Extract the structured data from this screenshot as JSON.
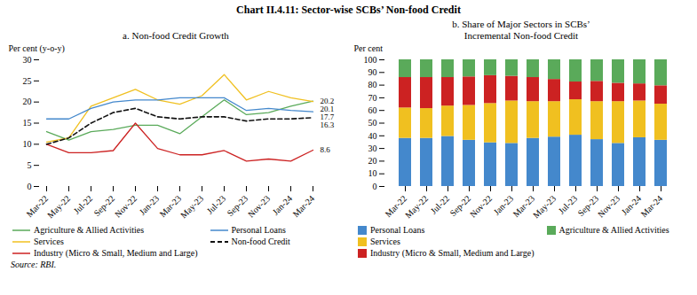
{
  "title": "Chart II.4.11: Sector-wise SCBs’ Non-food Credit",
  "caption": "Source: RBI.",
  "chart_data": [
    {
      "type": "line",
      "title": "a. Non-food Credit Growth",
      "y_label": "Per cent (y-o-y)",
      "categories": [
        "Mar-22",
        "May-22",
        "Jul-22",
        "Sep-22",
        "Nov-22",
        "Jan-23",
        "Mar-23",
        "May-23",
        "Jul-23",
        "Sep-23",
        "Nov-23",
        "Jan-24",
        "Mar-24"
      ],
      "series": [
        {
          "name": "Agriculture & Allied Activities",
          "color": "#5aaa5a",
          "line_style": "solid",
          "values": [
            13.0,
            11.0,
            13.0,
            13.5,
            14.5,
            14.5,
            12.5,
            16.5,
            20.5,
            17.0,
            17.5,
            19.0,
            20.2
          ]
        },
        {
          "name": "Services",
          "color": "#f0c020",
          "line_style": "solid",
          "values": [
            10.5,
            11.5,
            19.0,
            21.0,
            23.0,
            20.5,
            19.5,
            21.5,
            26.5,
            20.5,
            22.5,
            21.0,
            20.1
          ]
        },
        {
          "name": "Industry (Micro & Small, Medium and Large)",
          "color": "#cc2222",
          "line_style": "solid",
          "values": [
            10.0,
            8.0,
            8.0,
            8.5,
            15.0,
            9.0,
            7.5,
            7.5,
            8.5,
            6.0,
            6.5,
            6.0,
            8.6
          ]
        },
        {
          "name": "Personal Loans",
          "color": "#4488cc",
          "line_style": "solid",
          "values": [
            16.0,
            16.0,
            18.5,
            20.0,
            20.5,
            20.5,
            21.0,
            21.0,
            21.0,
            18.0,
            18.5,
            18.0,
            17.7
          ]
        },
        {
          "name": "Non-food Credit",
          "color": "#111111",
          "line_style": "dashed",
          "values": [
            10.0,
            11.5,
            15.0,
            17.5,
            18.5,
            16.5,
            16.0,
            16.5,
            16.5,
            15.5,
            16.0,
            16.0,
            16.3
          ]
        }
      ],
      "ylim": [
        0,
        30
      ],
      "yticks": [
        0,
        5,
        10,
        15,
        20,
        25,
        30
      ],
      "grid": false,
      "legend": "bottom",
      "annotations": [
        {
          "text": "20.2",
          "x": "Mar-24",
          "y": 20.2
        },
        {
          "text": "20.1",
          "x": "Mar-24",
          "y": 20.1
        },
        {
          "text": "17.7",
          "x": "Mar-24",
          "y": 17.7
        },
        {
          "text": "16.3",
          "x": "Mar-24",
          "y": 16.3
        },
        {
          "text": "8.6",
          "x": "Mar-24",
          "y": 8.6
        }
      ]
    },
    {
      "type": "bar",
      "stacked": true,
      "title": "b. Share of Major Sectors in SCBs’\nIncremental Non-food Credit",
      "y_label": "Per cent",
      "categories": [
        "Mar-22",
        "May-22",
        "Jul-22",
        "Sep-22",
        "Nov-22",
        "Jan-23",
        "Mar-23",
        "May-23",
        "Jul-23",
        "Sep-23",
        "Nov-23",
        "Jan-24",
        "Mar-24"
      ],
      "series": [
        {
          "name": "Personal Loans",
          "color": "#4488cc",
          "values": [
            38.0,
            38.0,
            39.5,
            36.5,
            34.5,
            34.0,
            38.0,
            39.0,
            40.5,
            37.0,
            34.0,
            38.5,
            36.5
          ]
        },
        {
          "name": "Services",
          "color": "#f0c020",
          "values": [
            24.0,
            23.5,
            24.0,
            27.5,
            31.0,
            33.5,
            29.0,
            28.0,
            28.0,
            30.0,
            33.0,
            29.0,
            28.5
          ]
        },
        {
          "name": "Industry (Micro & Small, Medium and Large)",
          "color": "#cc2222",
          "values": [
            24.0,
            24.5,
            22.5,
            22.5,
            22.0,
            19.5,
            19.0,
            17.5,
            14.0,
            16.0,
            14.5,
            13.5,
            14.5
          ]
        },
        {
          "name": "Agriculture & Allied Activities",
          "color": "#5aaa5a",
          "values": [
            14.0,
            14.0,
            14.0,
            13.5,
            12.5,
            13.0,
            14.0,
            15.5,
            17.5,
            17.0,
            18.5,
            19.0,
            20.5
          ]
        }
      ],
      "ylim": [
        0,
        100
      ],
      "yticks": [
        0,
        10,
        20,
        30,
        40,
        50,
        60,
        70,
        80,
        90,
        100
      ],
      "grid": false,
      "legend": "bottom"
    }
  ]
}
